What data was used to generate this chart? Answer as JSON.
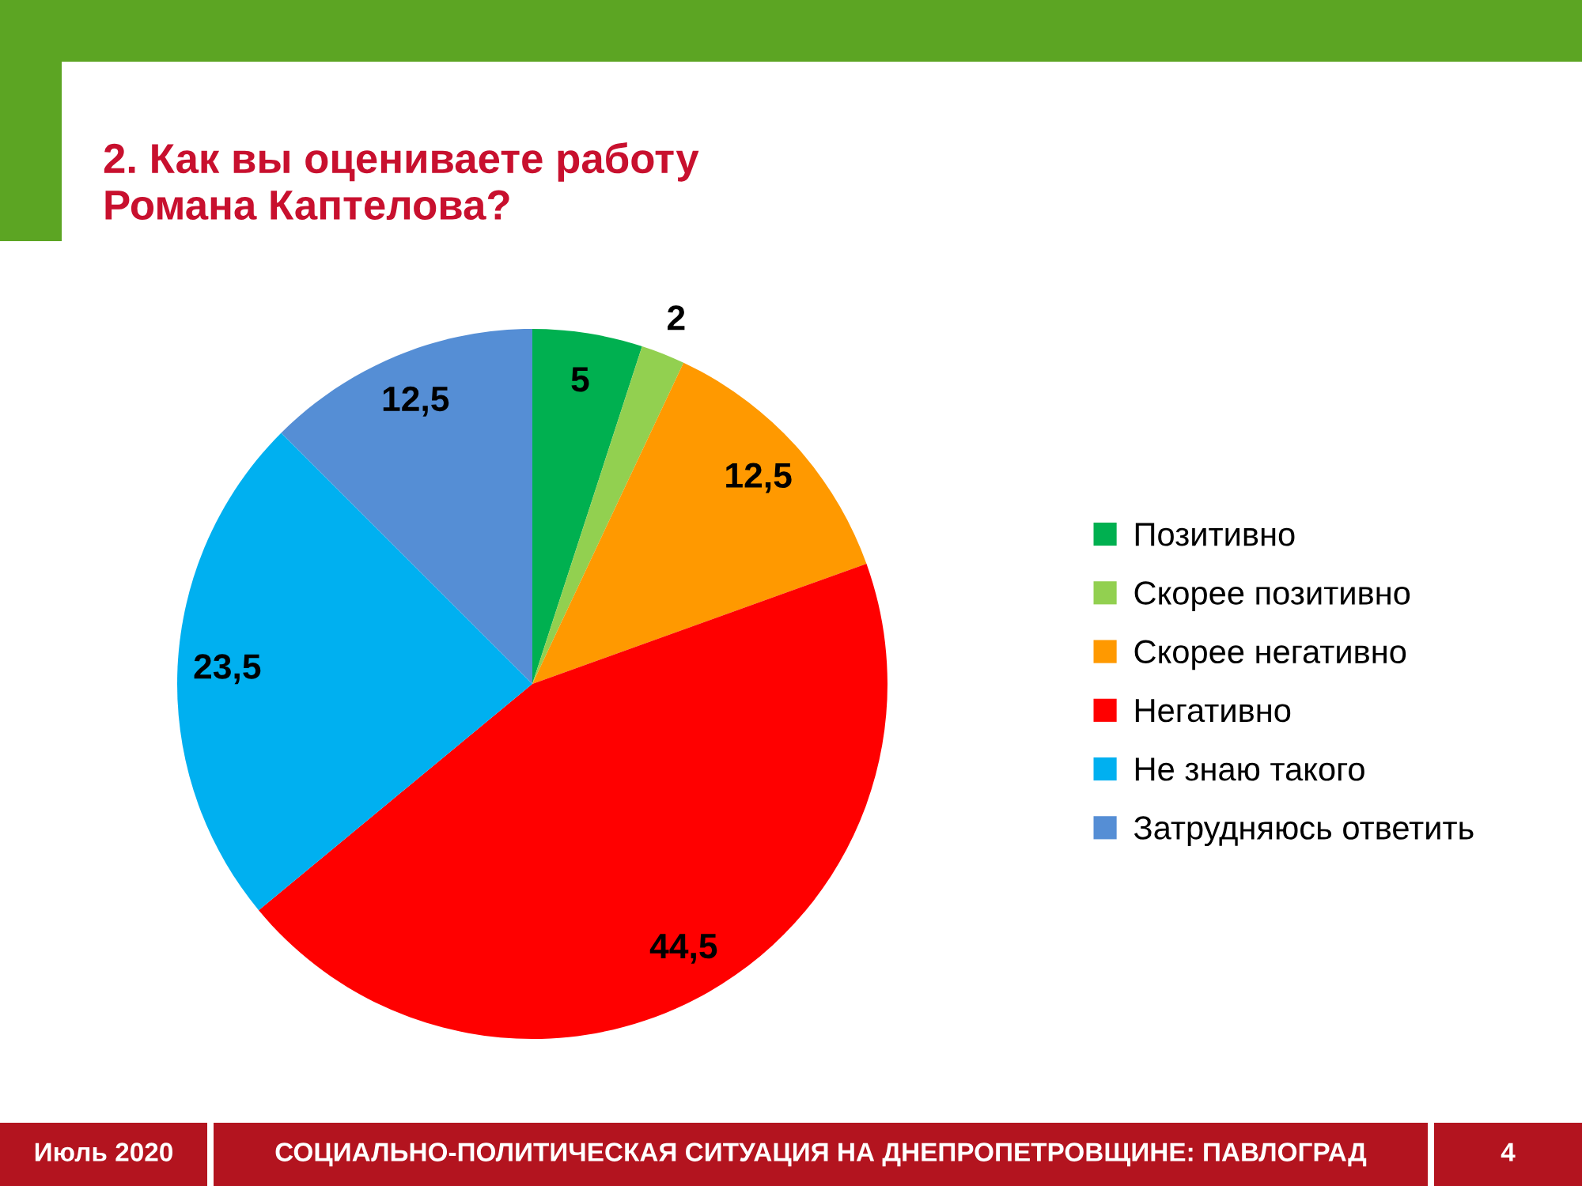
{
  "chart_data": {
    "type": "pie",
    "title": "2. Как вы оцениваете работу Романа Каптелова?",
    "categories": [
      "Позитивно",
      "Скорее позитивно",
      "Скорее негативно",
      "Негативно",
      "Не знаю такого",
      "Затрудняюсь ответить"
    ],
    "values": [
      5,
      2,
      12.5,
      44.5,
      23.5,
      12.5
    ],
    "value_labels": [
      "5",
      "2",
      "12,5",
      "44,5",
      "23,5",
      "12,5"
    ],
    "colors": [
      "#00b050",
      "#92d050",
      "#ff9900",
      "#ff0000",
      "#00b0f0",
      "#558ed5"
    ],
    "legend": "right",
    "annotations": [
      "Июль 2020",
      "СОЦИАЛЬНО-ПОЛИТИЧЕСКАЯ СИТУАЦИЯ НА ДНЕПРОПЕТРОВЩИНЕ: ПАВЛОГРАД",
      "4"
    ]
  }
}
